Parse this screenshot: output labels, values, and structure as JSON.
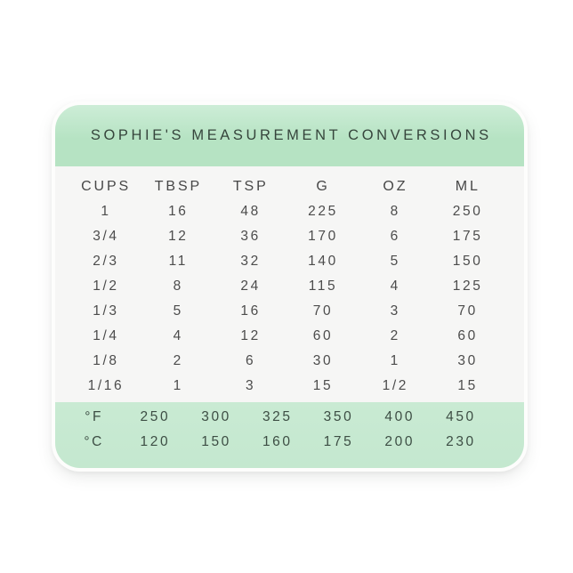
{
  "colors": {
    "header_bg": "#b6e3c3",
    "footer_bg": "#c9ead3",
    "body_bg": "#f6f6f5",
    "title_text": "#36453c",
    "table_text": "#4c4c4c",
    "footer_text": "#3d4e44",
    "card_bg": "#fdfdfc",
    "page_bg": "#ffffff"
  },
  "chart_data": {
    "type": "table",
    "title": "SOPHIE'S MEASUREMENT CONVERSIONS",
    "columns": [
      "CUPS",
      "TBSP",
      "TSP",
      "G",
      "OZ",
      "ML"
    ],
    "rows": [
      [
        "1",
        "16",
        "48",
        "225",
        "8",
        "250"
      ],
      [
        "3/4",
        "12",
        "36",
        "170",
        "6",
        "175"
      ],
      [
        "2/3",
        "11",
        "32",
        "140",
        "5",
        "150"
      ],
      [
        "1/2",
        "8",
        "24",
        "115",
        "4",
        "125"
      ],
      [
        "1/3",
        "5",
        "16",
        "70",
        "3",
        "70"
      ],
      [
        "1/4",
        "4",
        "12",
        "60",
        "2",
        "60"
      ],
      [
        "1/8",
        "2",
        "6",
        "30",
        "1",
        "30"
      ],
      [
        "1/16",
        "1",
        "3",
        "15",
        "1/2",
        "15"
      ]
    ],
    "temperature": {
      "fahrenheit": {
        "label": "°F",
        "values": [
          "250",
          "300",
          "325",
          "350",
          "400",
          "450"
        ]
      },
      "celsius": {
        "label": "°C",
        "values": [
          "120",
          "150",
          "160",
          "175",
          "200",
          "230"
        ]
      }
    },
    "layout_hints": {
      "grid": "off",
      "header_band": "top",
      "temperature_band": "bottom"
    }
  }
}
